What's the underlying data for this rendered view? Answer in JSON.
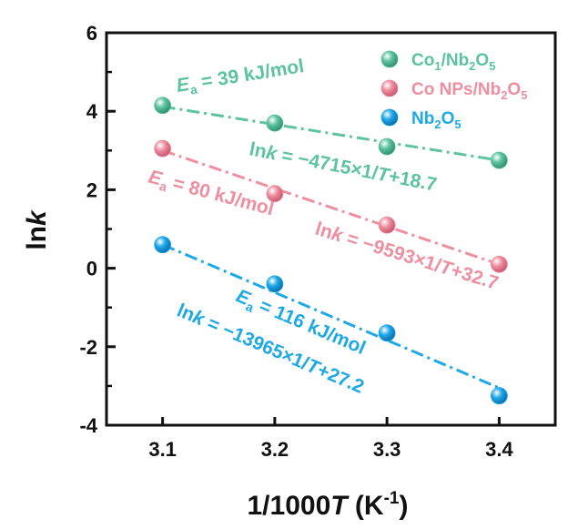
{
  "chart_data": {
    "type": "scatter",
    "xlabel": {
      "prefix": "1/1000",
      "italic": "T",
      "suffix": " (K",
      "sup": "-1",
      "close": ")"
    },
    "ylabel": {
      "prefix": "ln",
      "italic": "k"
    },
    "xlim": [
      3.05,
      3.45
    ],
    "ylim": [
      -4,
      6
    ],
    "xticks": [
      3.1,
      3.2,
      3.3,
      3.4
    ],
    "xtick_labels": [
      "3.1",
      "3.2",
      "3.3",
      "3.4"
    ],
    "yticks": [
      -4,
      -2,
      0,
      2,
      4,
      6
    ],
    "ytick_labels": [
      "-4",
      "-2",
      "0",
      "2",
      "4",
      "6"
    ],
    "grid": false,
    "legend_position": "top-right",
    "series": [
      {
        "legend": {
          "a": "Co",
          "a_sub": "1",
          "b": "/Nb",
          "b_sub": "2",
          "c": "O",
          "c_sub": "5"
        },
        "color": "#5cc3a0",
        "x": [
          3.1,
          3.2,
          3.3,
          3.4
        ],
        "y": [
          4.15,
          3.7,
          3.1,
          2.75
        ],
        "fit_start": [
          3.1,
          4.12
        ],
        "fit_end": [
          3.4,
          2.75
        ],
        "ea_label": {
          "e": "E",
          "sub": "a",
          "rest": " = 39 kJ/mol"
        },
        "eq_label": {
          "ln": "ln",
          "k": "k",
          "mid": " = −4715×1/",
          "T": "T",
          "rest": "+18.7"
        }
      },
      {
        "legend": {
          "a": "Co NPs/Nb",
          "a_sub": "2",
          "b": "O",
          "b_sub": "5"
        },
        "color": "#ee8ea0",
        "x": [
          3.1,
          3.2,
          3.3,
          3.4
        ],
        "y": [
          3.05,
          1.9,
          1.1,
          0.1
        ],
        "fit_start": [
          3.1,
          3.0
        ],
        "fit_end": [
          3.4,
          0.1
        ],
        "ea_label": {
          "e": "E",
          "sub": "a",
          "rest": " = 80 kJ/mol"
        },
        "eq_label": {
          "ln": "ln",
          "k": "k",
          "mid": " = −9593×1/",
          "T": "T",
          "rest": "+32.7"
        }
      },
      {
        "legend": {
          "a": "Nb",
          "a_sub": "2",
          "b": "O",
          "b_sub": "5"
        },
        "color": "#1ea8e6",
        "x": [
          3.1,
          3.2,
          3.3,
          3.4
        ],
        "y": [
          0.6,
          -0.4,
          -1.65,
          -3.25
        ],
        "fit_start": [
          3.1,
          0.6
        ],
        "fit_end": [
          3.4,
          -3.05
        ],
        "ea_label": {
          "e": "E",
          "sub": "a",
          "rest": " = 116 kJ/mol"
        },
        "eq_label": {
          "ln": "ln",
          "k": "k",
          "mid": " = −13965×1/",
          "T": "T",
          "rest": "+27.2"
        }
      }
    ]
  }
}
